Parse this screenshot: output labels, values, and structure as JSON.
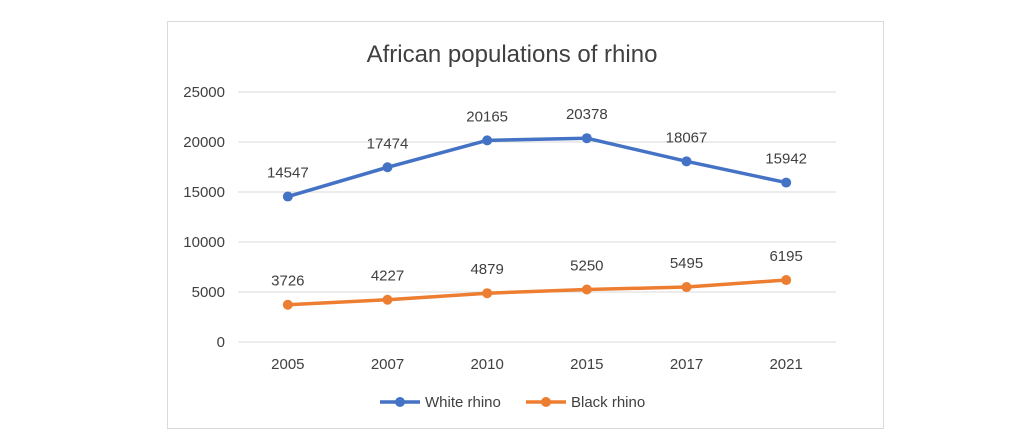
{
  "chart_data": {
    "type": "line",
    "title": "African populations of rhino",
    "categories": [
      "2005",
      "2007",
      "2010",
      "2015",
      "2017",
      "2021"
    ],
    "series": [
      {
        "name": "White rhino",
        "values": [
          14547,
          17474,
          20165,
          20378,
          18067,
          15942
        ],
        "color": "#4472c4"
      },
      {
        "name": "Black rhino",
        "values": [
          3726,
          4227,
          4879,
          5250,
          5495,
          6195
        ],
        "color": "#ed7d31"
      }
    ],
    "ylim": [
      0,
      25000
    ],
    "yticks": [
      "0",
      "5000",
      "10000",
      "15000",
      "20000",
      "25000"
    ],
    "xlabel": "",
    "ylabel": "",
    "grid": true,
    "legend_position": "bottom"
  }
}
